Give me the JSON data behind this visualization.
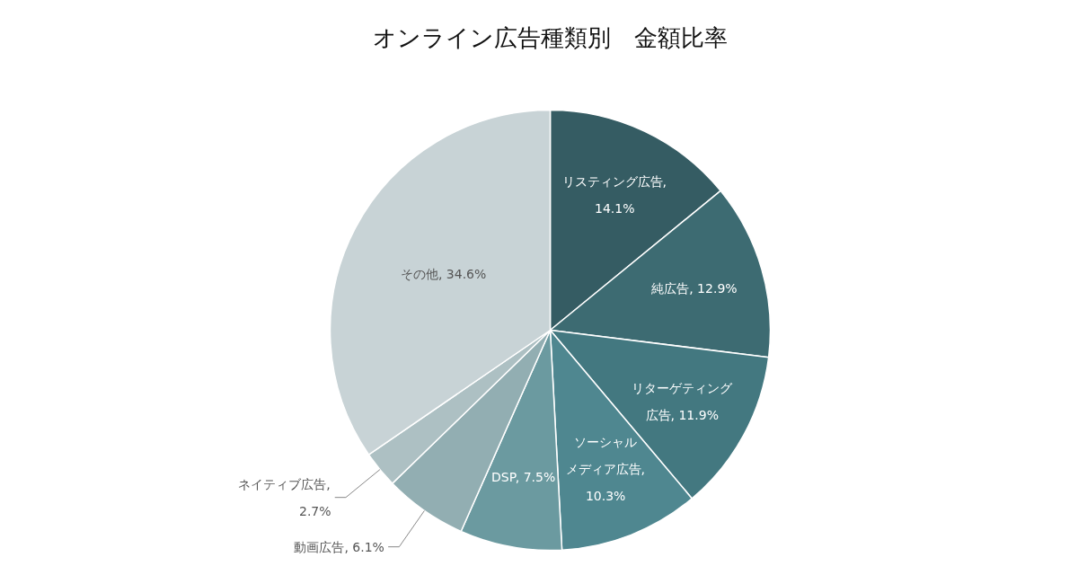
{
  "chart_data": {
    "type": "pie",
    "title": "オンライン広告種類別　金額比率",
    "categories": [
      "リスティング広告",
      "純広告",
      "リターゲティング広告",
      "ソーシャルメディア広告",
      "DSP",
      "動画広告",
      "ネイティブ広告",
      "その他"
    ],
    "values": [
      14.1,
      12.9,
      11.9,
      10.3,
      7.5,
      6.1,
      2.7,
      34.6
    ],
    "colors": [
      "#355c63",
      "#3d6b72",
      "#437880",
      "#4f8790",
      "#6b9aa0",
      "#92aeb2",
      "#adc0c3",
      "#c8d3d6"
    ],
    "value_labels": [
      ", 14.1%",
      ", 12.9%",
      ", 11.9%",
      ", 10.3%",
      ", 7.5%",
      ", 6.1%",
      ", 2.7%",
      ", 34.6%"
    ]
  }
}
